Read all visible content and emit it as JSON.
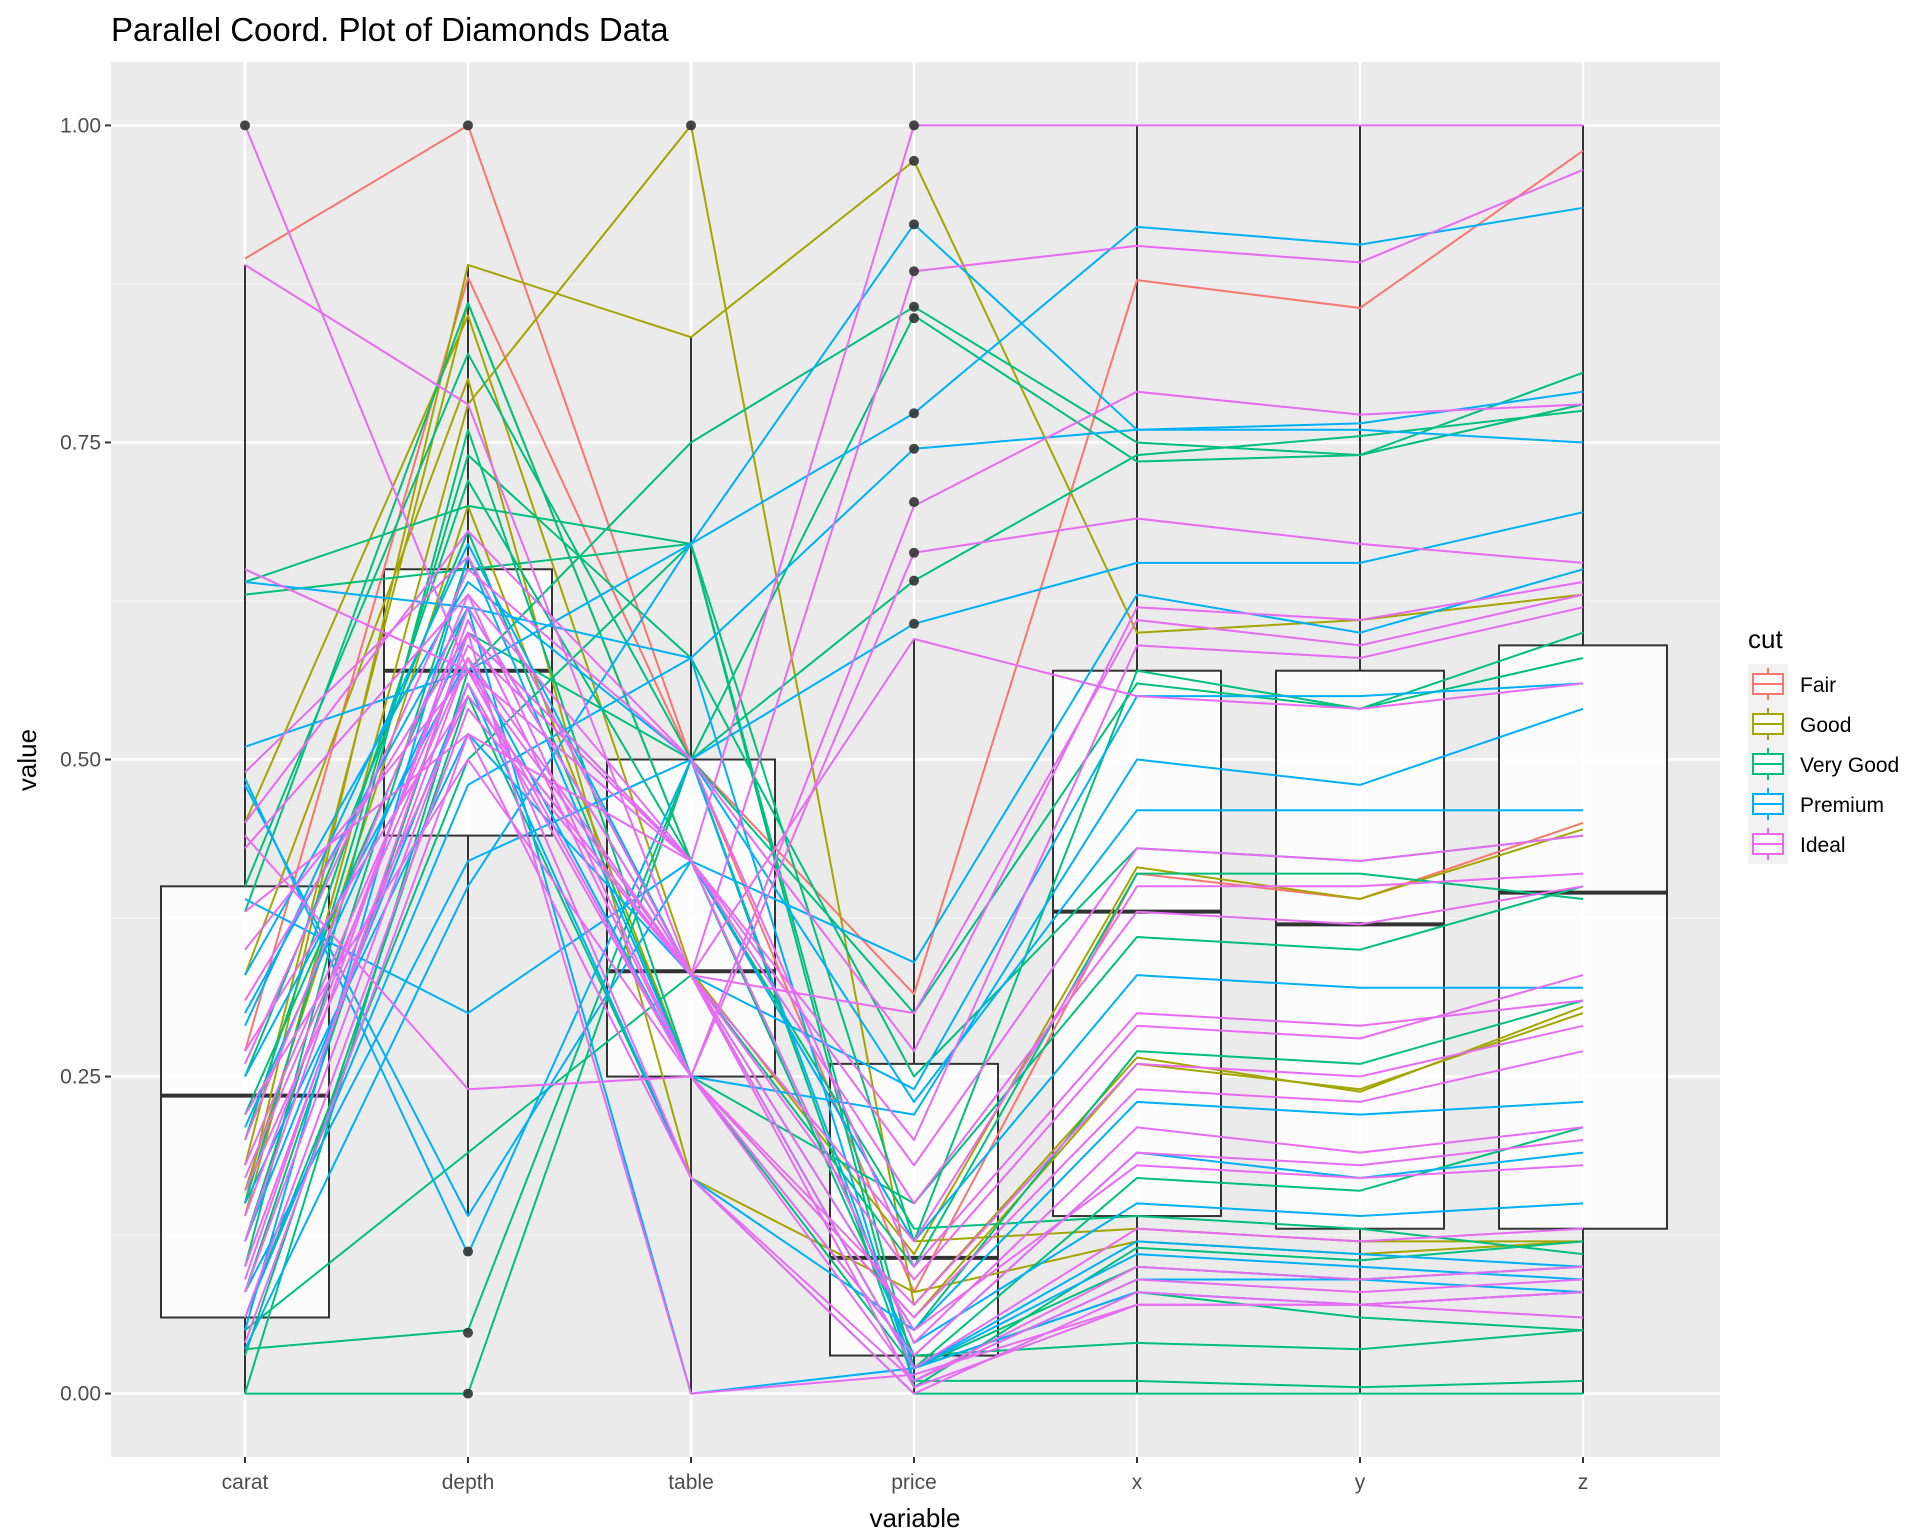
{
  "chart_data": {
    "type": "parallel-coordinates",
    "title": "Parallel Coord. Plot of Diamonds Data",
    "xlabel": "variable",
    "ylabel": "value",
    "ylim": [
      -0.05,
      1.05
    ],
    "y_ticks": [
      "0.00",
      "0.25",
      "0.50",
      "0.75",
      "1.00"
    ],
    "y_tick_values": [
      0,
      0.25,
      0.5,
      0.75,
      1
    ],
    "categories": [
      "carat",
      "depth",
      "table",
      "price",
      "x",
      "y",
      "z"
    ],
    "grid": true,
    "legend_position": "right",
    "legend": {
      "title": "cut",
      "items": [
        {
          "label": "Fair",
          "color": "#F8766D"
        },
        {
          "label": "Good",
          "color": "#A3A500"
        },
        {
          "label": "Very Good",
          "color": "#00BF7D"
        },
        {
          "label": "Premium",
          "color": "#00B0F6"
        },
        {
          "label": "Ideal",
          "color": "#E76BF3"
        }
      ]
    },
    "boxplots": [
      {
        "variable": "carat",
        "q1": 0.06,
        "median": 0.235,
        "q3": 0.4,
        "lower": 0.0,
        "upper": 0.89
      },
      {
        "variable": "depth",
        "q1": 0.44,
        "median": 0.57,
        "q3": 0.65,
        "lower": 0.14,
        "upper": 0.89
      },
      {
        "variable": "table",
        "q1": 0.25,
        "median": 0.333,
        "q3": 0.5,
        "lower": 0.0,
        "upper": 0.833
      },
      {
        "variable": "price",
        "q1": 0.03,
        "median": 0.107,
        "q3": 0.26,
        "lower": 0.0,
        "upper": 0.595
      },
      {
        "variable": "x",
        "q1": 0.14,
        "median": 0.38,
        "q3": 0.57,
        "lower": 0.0,
        "upper": 1.0
      },
      {
        "variable": "y",
        "q1": 0.13,
        "median": 0.37,
        "q3": 0.57,
        "lower": 0.0,
        "upper": 1.0
      },
      {
        "variable": "z",
        "q1": 0.13,
        "median": 0.395,
        "q3": 0.59,
        "lower": 0.0,
        "upper": 1.0
      }
    ],
    "outliers": [
      {
        "variable": "carat",
        "values": [
          1.0
        ]
      },
      {
        "variable": "depth",
        "values": [
          1.0,
          0.112,
          0.048,
          0.0
        ]
      },
      {
        "variable": "table",
        "values": [
          1.0
        ]
      },
      {
        "variable": "price",
        "values": [
          1.0,
          0.972,
          0.922,
          0.885,
          0.857,
          0.848,
          0.773,
          0.745,
          0.703,
          0.663,
          0.641,
          0.607
        ]
      }
    ],
    "series": [
      {
        "name": "Fair",
        "lines": [
          [
            0.895,
            1.0,
            0.5,
            0.315,
            0.878,
            0.856,
            0.98
          ],
          [
            0.27,
            0.88,
            0.5,
            0.08,
            0.41,
            0.39,
            0.45
          ]
        ]
      },
      {
        "name": "Good",
        "lines": [
          [
            0.15,
            0.89,
            0.833,
            0.972,
            0.6,
            0.61,
            0.63
          ],
          [
            0.14,
            0.78,
            1.0,
            0.07,
            0.265,
            0.238,
            0.305
          ],
          [
            0.45,
            0.85,
            0.333,
            0.11,
            0.415,
            0.39,
            0.445
          ],
          [
            0.16,
            0.7,
            0.25,
            0.06,
            0.26,
            0.24,
            0.3
          ],
          [
            0.33,
            0.8,
            0.17,
            0.08,
            0.12,
            0.11,
            0.12
          ],
          [
            0.18,
            0.86,
            0.42,
            0.12,
            0.13,
            0.12,
            0.12
          ]
        ]
      },
      {
        "name": "Very Good",
        "lines": [
          [
            0.0,
            0.57,
            0.75,
            0.857,
            0.75,
            0.74,
            0.78
          ],
          [
            0.035,
            0.05,
            0.5,
            0.85,
            0.735,
            0.74,
            0.805
          ],
          [
            0.64,
            0.7,
            0.67,
            0.005,
            0.115,
            0.105,
            0.12
          ],
          [
            0.0,
            0.0,
            0.5,
            0.641,
            0.74,
            0.755,
            0.775
          ],
          [
            0.05,
            0.19,
            0.33,
            0.1,
            0.41,
            0.41,
            0.39
          ],
          [
            0.38,
            0.86,
            0.42,
            0.13,
            0.14,
            0.13,
            0.11
          ],
          [
            0.4,
            0.82,
            0.5,
            0.3,
            0.56,
            0.54,
            0.58
          ],
          [
            0.1,
            0.76,
            0.25,
            0.02,
            0.1,
            0.09,
            0.1
          ],
          [
            0.12,
            0.66,
            0.33,
            0.02,
            0.08,
            0.06,
            0.05
          ],
          [
            0.2,
            0.72,
            0.42,
            0.03,
            0.04,
            0.035,
            0.05
          ],
          [
            0.08,
            0.6,
            0.5,
            0.01,
            0.01,
            0.005,
            0.01
          ],
          [
            0.03,
            0.55,
            0.17,
            0.0,
            0.0,
            0.0,
            0.0
          ],
          [
            0.25,
            0.68,
            0.25,
            0.15,
            0.36,
            0.35,
            0.4
          ],
          [
            0.15,
            0.74,
            0.58,
            0.25,
            0.43,
            0.42,
            0.44
          ],
          [
            0.22,
            0.62,
            0.33,
            0.05,
            0.27,
            0.26,
            0.31
          ],
          [
            0.06,
            0.5,
            0.67,
            0.02,
            0.17,
            0.16,
            0.21
          ],
          [
            0.63,
            0.65,
            0.67,
            0.12,
            0.57,
            0.54,
            0.6
          ]
        ]
      },
      {
        "name": "Premium",
        "lines": [
          [
            0.035,
            0.4,
            0.67,
            0.922,
            0.76,
            0.765,
            0.79
          ],
          [
            0.51,
            0.57,
            0.67,
            0.773,
            0.92,
            0.906,
            0.935
          ],
          [
            0.3,
            0.62,
            0.58,
            0.745,
            0.76,
            0.76,
            0.75
          ],
          [
            0.485,
            0.11,
            0.5,
            0.607,
            0.655,
            0.655,
            0.695
          ],
          [
            0.48,
            0.14,
            0.42,
            0.34,
            0.63,
            0.6,
            0.65
          ],
          [
            0.05,
            0.66,
            0.25,
            0.22,
            0.5,
            0.48,
            0.54
          ],
          [
            0.21,
            0.6,
            0.42,
            0.04,
            0.15,
            0.14,
            0.15
          ],
          [
            0.33,
            0.64,
            0.5,
            0.23,
            0.46,
            0.46,
            0.46
          ],
          [
            0.15,
            0.52,
            0.33,
            0.02,
            0.12,
            0.11,
            0.1
          ],
          [
            0.06,
            0.48,
            0.58,
            0.01,
            0.09,
            0.09,
            0.08
          ],
          [
            0.12,
            0.56,
            0.17,
            0.05,
            0.23,
            0.22,
            0.23
          ],
          [
            0.64,
            0.62,
            0.0,
            0.02,
            0.08,
            0.07,
            0.08
          ],
          [
            0.39,
            0.3,
            0.42,
            0.12,
            0.33,
            0.32,
            0.32
          ],
          [
            0.25,
            0.58,
            0.25,
            0.03,
            0.19,
            0.17,
            0.19
          ],
          [
            0.08,
            0.42,
            0.5,
            0.02,
            0.11,
            0.1,
            0.09
          ],
          [
            0.29,
            0.67,
            0.33,
            0.24,
            0.55,
            0.55,
            0.56
          ]
        ]
      },
      {
        "name": "Ideal",
        "lines": [
          [
            1.0,
            0.57,
            0.42,
            1.0,
            1.0,
            1.0,
            1.0
          ],
          [
            0.89,
            0.78,
            0.33,
            0.885,
            0.905,
            0.892,
            0.965
          ],
          [
            0.65,
            0.57,
            0.25,
            0.7,
            0.79,
            0.772,
            0.78
          ],
          [
            0.44,
            0.24,
            0.25,
            0.663,
            0.69,
            0.67,
            0.655
          ],
          [
            0.17,
            0.58,
            0.33,
            0.595,
            0.55,
            0.54,
            0.56
          ],
          [
            0.09,
            0.6,
            0.0,
            0.015,
            0.07,
            0.07,
            0.08
          ],
          [
            0.49,
            0.66,
            0.33,
            0.3,
            0.61,
            0.59,
            0.63
          ],
          [
            0.38,
            0.52,
            0.42,
            0.18,
            0.43,
            0.42,
            0.44
          ],
          [
            0.27,
            0.55,
            0.33,
            0.09,
            0.29,
            0.28,
            0.33
          ],
          [
            0.14,
            0.61,
            0.25,
            0.03,
            0.19,
            0.18,
            0.2
          ],
          [
            0.1,
            0.58,
            0.17,
            0.01,
            0.1,
            0.09,
            0.1
          ],
          [
            0.06,
            0.54,
            0.33,
            0.005,
            0.07,
            0.07,
            0.06
          ],
          [
            0.43,
            0.63,
            0.42,
            0.2,
            0.59,
            0.58,
            0.62
          ],
          [
            0.35,
            0.57,
            0.33,
            0.12,
            0.4,
            0.4,
            0.41
          ],
          [
            0.22,
            0.5,
            0.25,
            0.06,
            0.24,
            0.23,
            0.27
          ],
          [
            0.18,
            0.59,
            0.42,
            0.04,
            0.21,
            0.19,
            0.21
          ],
          [
            0.12,
            0.62,
            0.33,
            0.02,
            0.13,
            0.12,
            0.13
          ],
          [
            0.08,
            0.56,
            0.25,
            0.01,
            0.09,
            0.08,
            0.09
          ],
          [
            0.26,
            0.65,
            0.5,
            0.1,
            0.3,
            0.29,
            0.31
          ],
          [
            0.31,
            0.6,
            0.42,
            0.15,
            0.38,
            0.37,
            0.4
          ],
          [
            0.04,
            0.52,
            0.17,
            0.0,
            0.08,
            0.07,
            0.08
          ],
          [
            0.45,
            0.68,
            0.5,
            0.27,
            0.62,
            0.61,
            0.64
          ],
          [
            0.16,
            0.55,
            0.33,
            0.05,
            0.18,
            0.17,
            0.18
          ],
          [
            0.2,
            0.63,
            0.25,
            0.07,
            0.26,
            0.25,
            0.29
          ]
        ]
      }
    ]
  }
}
